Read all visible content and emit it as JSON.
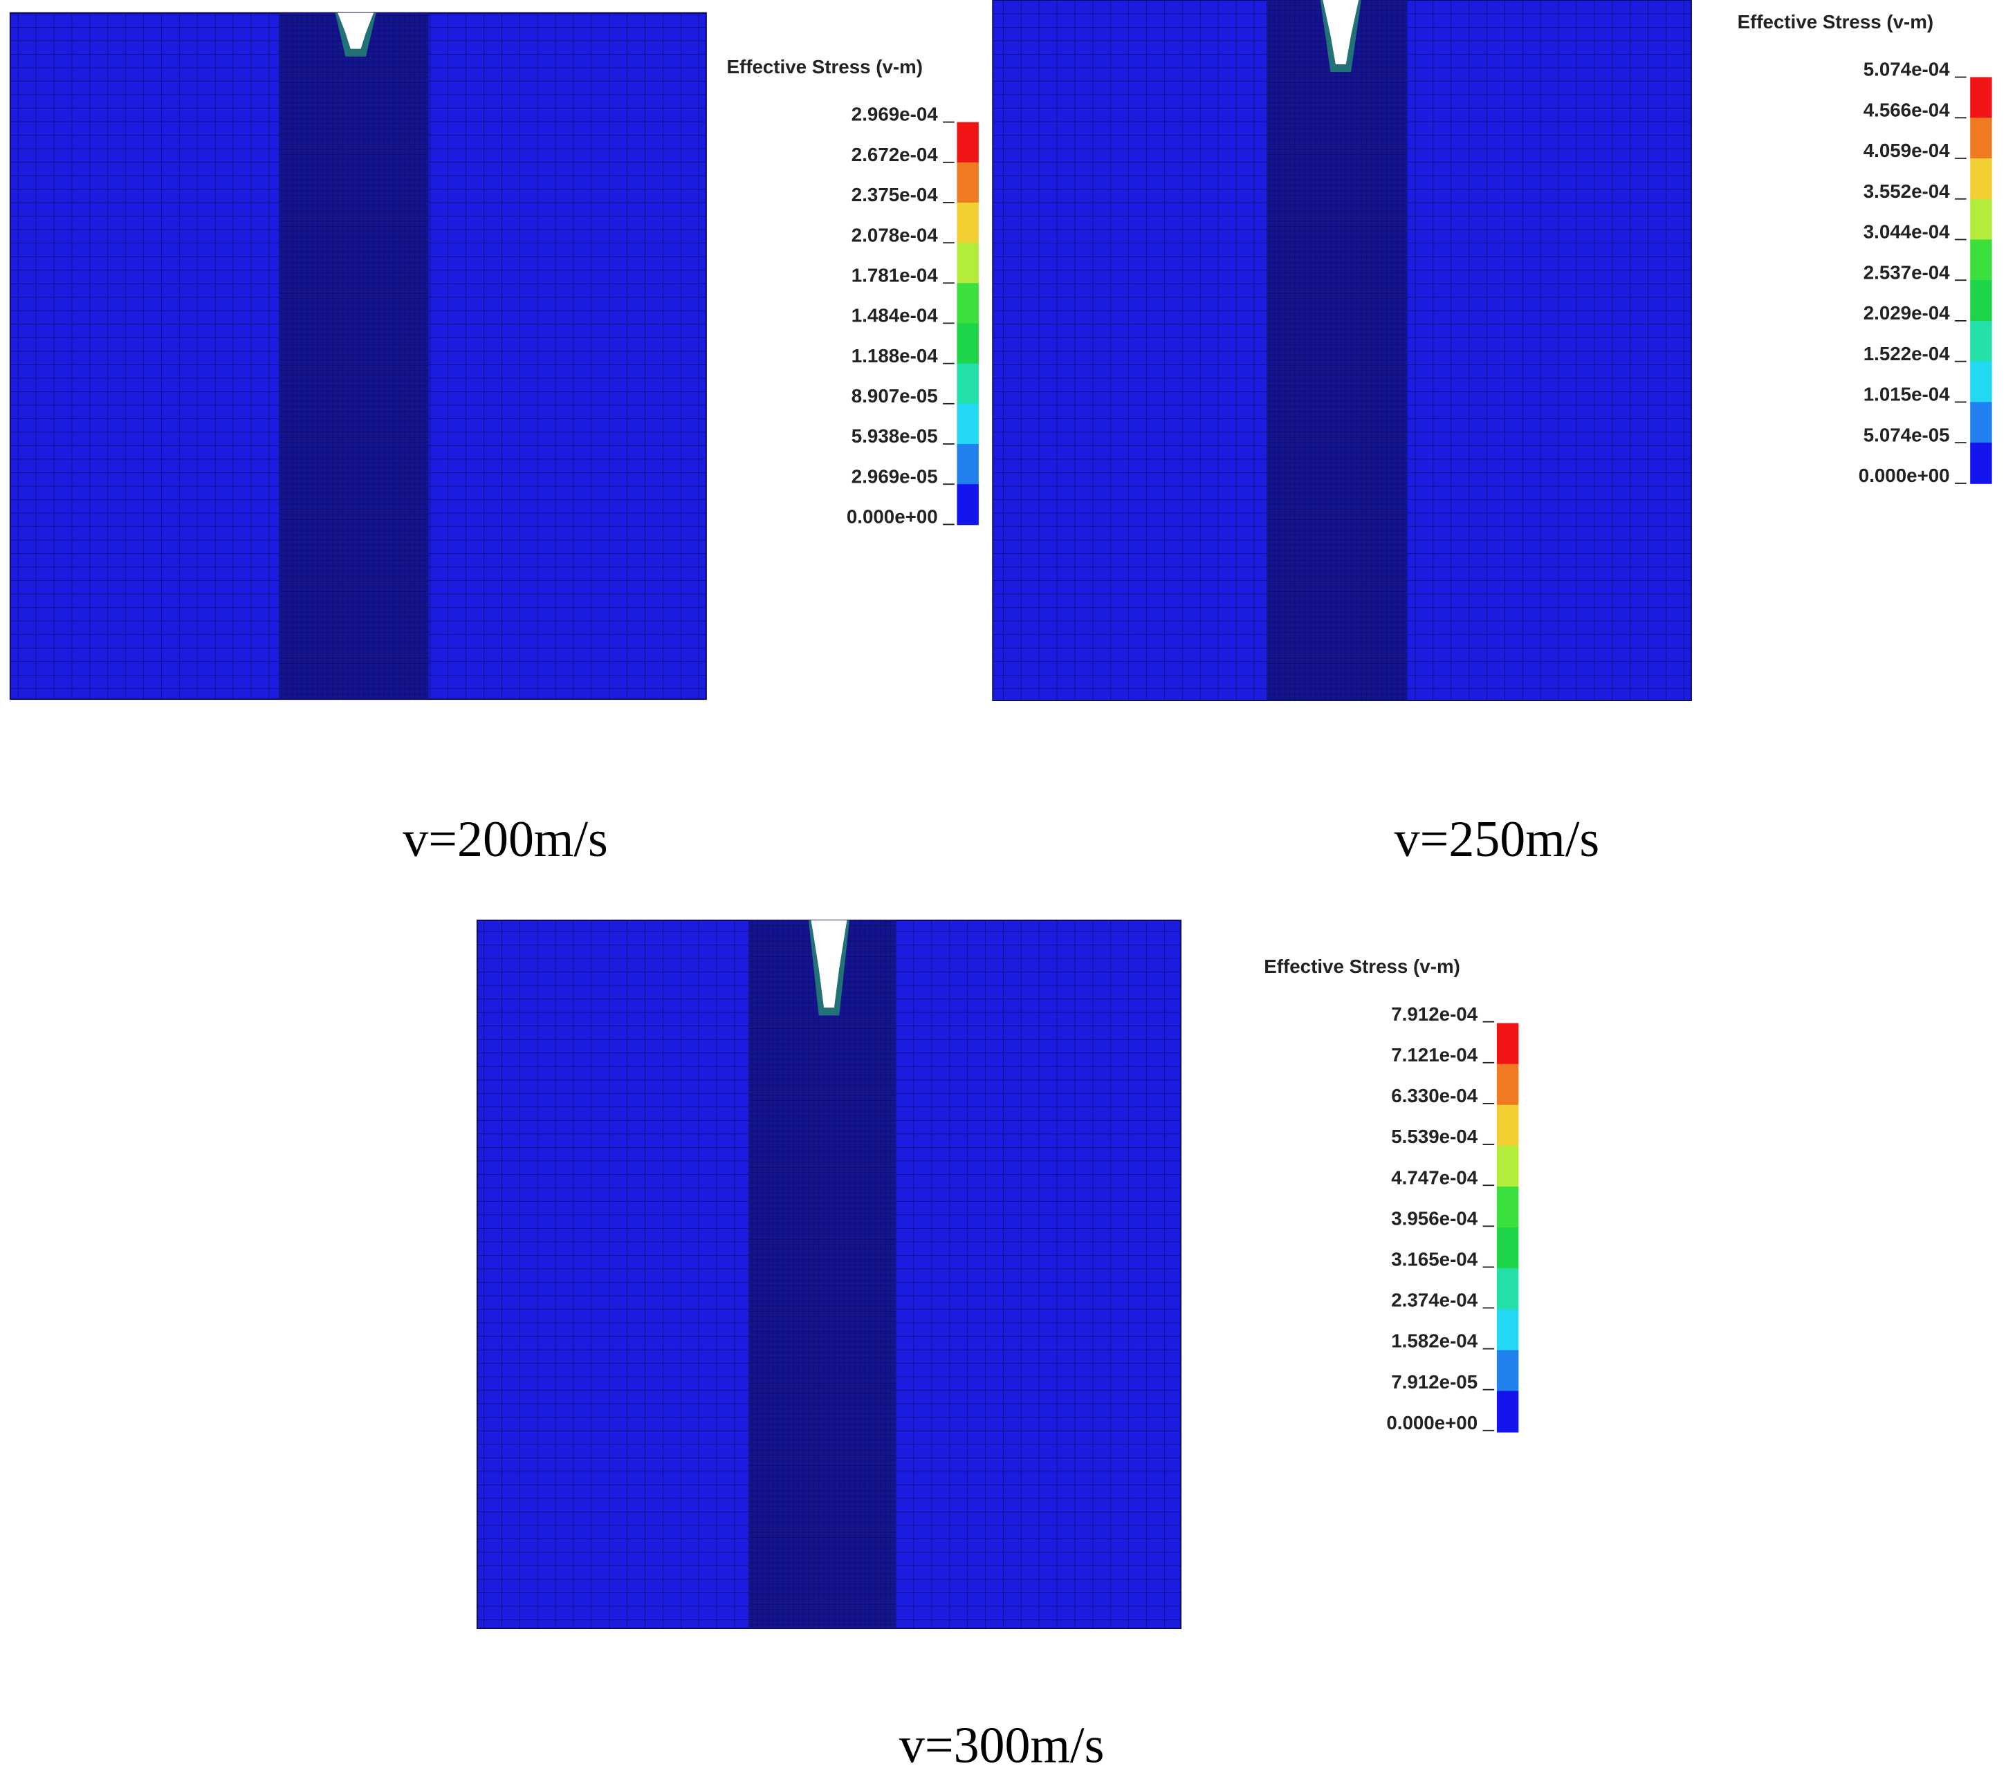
{
  "panels": [
    {
      "caption": "v=200m/s",
      "legend": {
        "title": "Effective Stress (v-m)",
        "labels": [
          "2.969e-04",
          "2.672e-04",
          "2.375e-04",
          "2.078e-04",
          "1.781e-04",
          "1.484e-04",
          "1.188e-04",
          "8.907e-05",
          "5.938e-05",
          "2.969e-05",
          "0.000e+00"
        ]
      }
    },
    {
      "caption": "v=250m/s",
      "legend": {
        "title": "Effective Stress (v-m)",
        "labels": [
          "5.074e-04",
          "4.566e-04",
          "4.059e-04",
          "3.552e-04",
          "3.044e-04",
          "2.537e-04",
          "2.029e-04",
          "1.522e-04",
          "1.015e-04",
          "5.074e-05",
          "0.000e+00"
        ]
      }
    },
    {
      "caption": "v=300m/s",
      "legend": {
        "title": "Effective Stress (v-m)",
        "labels": [
          "7.912e-04",
          "7.121e-04",
          "6.330e-04",
          "5.539e-04",
          "4.747e-04",
          "3.956e-04",
          "3.165e-04",
          "2.374e-04",
          "1.582e-04",
          "7.912e-05",
          "0.000e+00"
        ]
      }
    }
  ]
}
